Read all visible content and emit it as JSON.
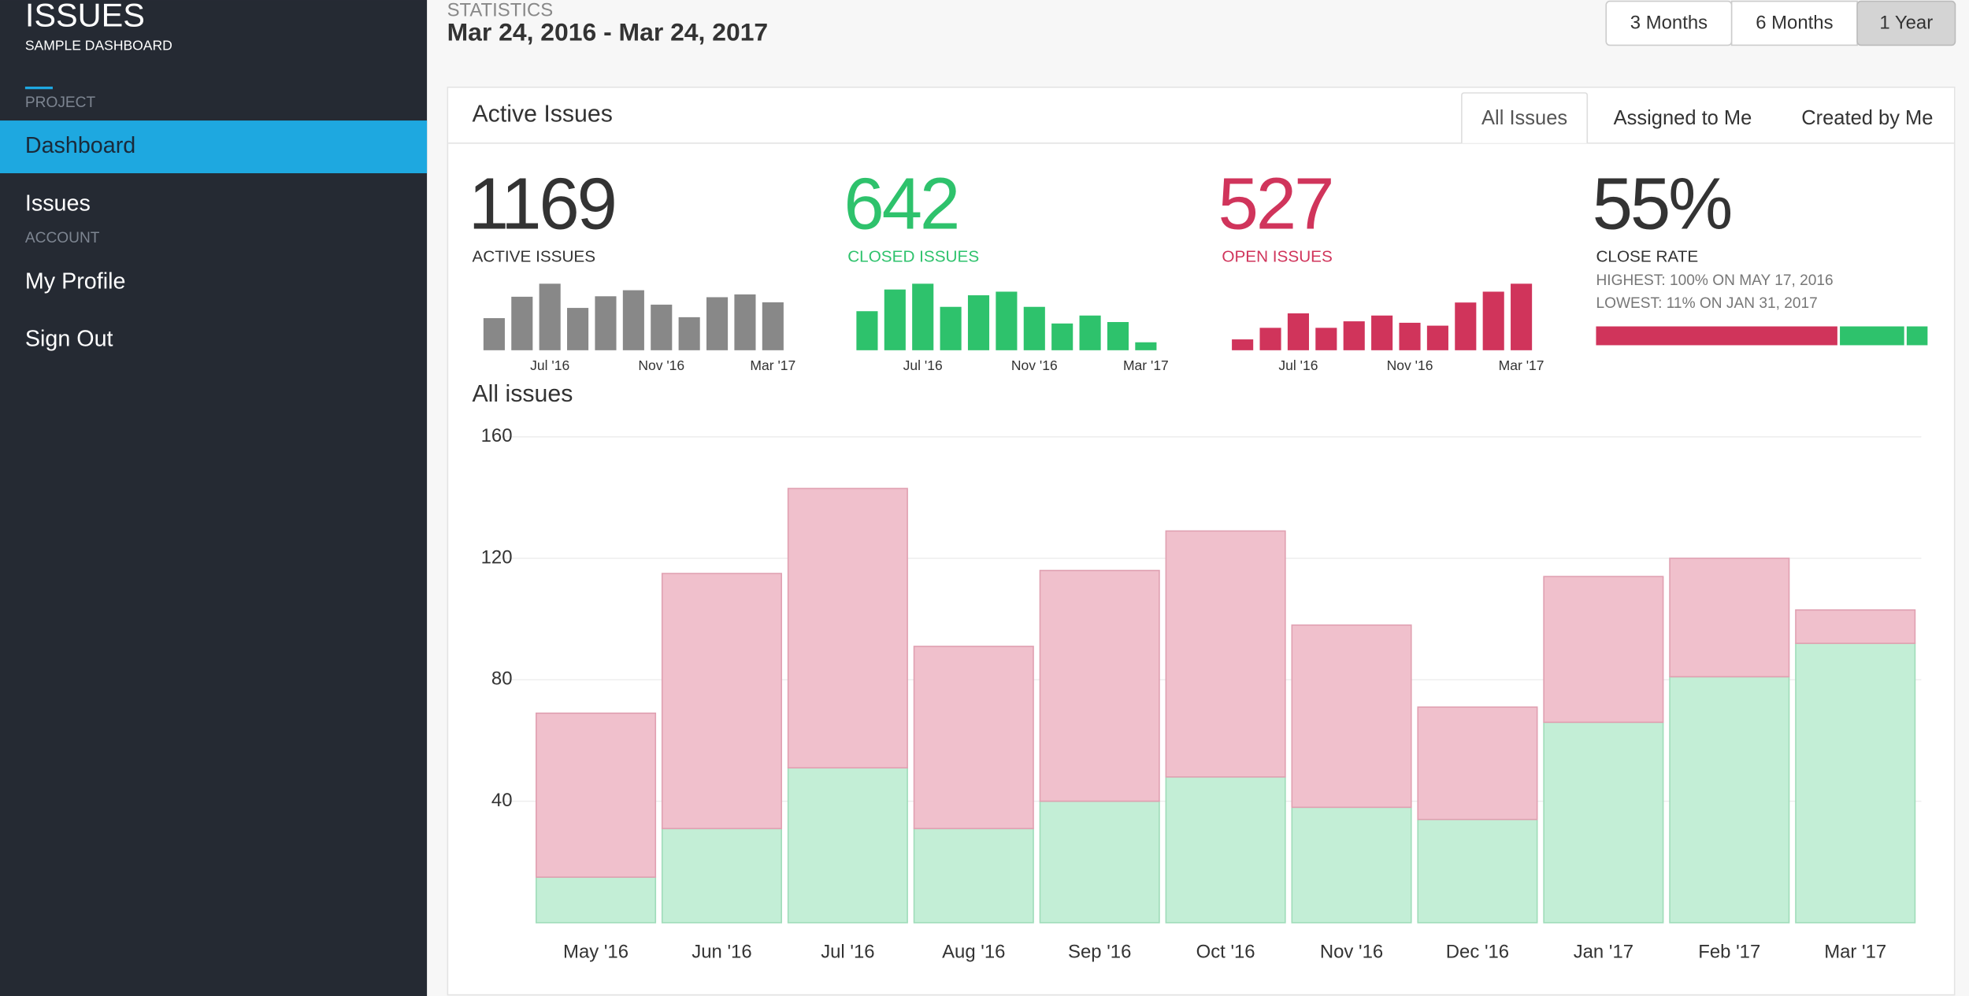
{
  "sidebar": {
    "title": "ISSUES",
    "subtitle": "SAMPLE DASHBOARD",
    "sections": [
      {
        "label": "PROJECT",
        "items": [
          "Dashboard",
          "Issues"
        ]
      },
      {
        "label": "ACCOUNT",
        "items": [
          "My Profile",
          "Sign Out"
        ]
      }
    ]
  },
  "header": {
    "label": "STATISTICS",
    "range": "Mar 24, 2016 - Mar 24, 2017",
    "buttons": [
      "3 Months",
      "6 Months",
      "1 Year"
    ]
  },
  "panel": {
    "title": "Active Issues",
    "tabs": [
      "All Issues",
      "Assigned to Me",
      "Created by Me"
    ],
    "stats": [
      {
        "value": "1169",
        "label": "ACTIVE ISSUES",
        "color": "#333333"
      },
      {
        "value": "642",
        "label": "CLOSED ISSUES",
        "color": "#2ec26c"
      },
      {
        "value": "527",
        "label": "OPEN ISSUES",
        "color": "#d0345b"
      },
      {
        "value": "55%",
        "label": "CLOSE RATE",
        "color": "#333333"
      }
    ],
    "close_rate_notes": [
      "HIGHEST: 100% ON MAY 17, 2016",
      "LOWEST: 11% ON JAN 31, 2017"
    ],
    "close_bar": [
      {
        "value": 73,
        "color": "#d0345b"
      },
      {
        "value": 20,
        "color": "#2ec26c"
      },
      {
        "value": 7,
        "color": "#2ec26c"
      }
    ]
  },
  "chart_data": [
    {
      "type": "bar",
      "color": "#888888",
      "categories": [
        null,
        null,
        "Jul '16",
        null,
        null,
        null,
        "Nov '16",
        null,
        null,
        null,
        "Mar '17"
      ],
      "values": [
        69,
        115,
        143,
        91,
        116,
        129,
        98,
        71,
        114,
        120,
        103
      ]
    },
    {
      "type": "bar",
      "color": "#2ec26c",
      "categories": [
        null,
        null,
        "Jul '16",
        null,
        null,
        null,
        "Nov '16",
        null,
        null,
        null,
        "Mar '17"
      ],
      "values": [
        54,
        84,
        92,
        60,
        76,
        81,
        60,
        37,
        48,
        39,
        11
      ]
    },
    {
      "type": "bar",
      "color": "#d0345b",
      "categories": [
        null,
        null,
        "Jul '16",
        null,
        null,
        null,
        "Nov '16",
        null,
        null,
        null,
        "Mar '17"
      ],
      "values": [
        15,
        31,
        51,
        31,
        40,
        48,
        38,
        34,
        66,
        81,
        92
      ]
    },
    {
      "type": "stacked_bar",
      "title": "All issues",
      "categories": [
        "May '16",
        "Jun '16",
        "Jul '16",
        "Aug '16",
        "Sep '16",
        "Oct '16",
        "Nov '16",
        "Dec '16",
        "Jan '17",
        "Feb '17",
        "Mar '17"
      ],
      "series": [
        {
          "color": "#c3eed6",
          "values": [
            15,
            31,
            51,
            31,
            40,
            48,
            38,
            34,
            66,
            81,
            92
          ]
        },
        {
          "color": "#f0c0cc",
          "values": [
            54,
            84,
            92,
            60,
            76,
            81,
            60,
            37,
            48,
            39,
            11
          ]
        }
      ],
      "ylim": [
        0,
        160
      ],
      "yticks": [
        40,
        80,
        120,
        160
      ],
      "grid": true
    }
  ]
}
